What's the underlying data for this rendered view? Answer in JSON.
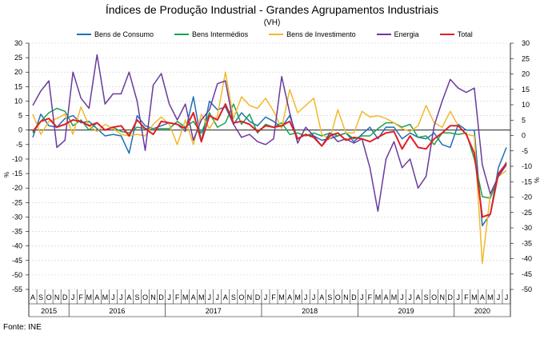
{
  "chart_data": {
    "type": "line",
    "title": "Índices de Produção Industrial - Grandes Agrupamentos Industriais",
    "subtitle": "(VH)",
    "ylabel_left": "%",
    "ylabel_right": "%",
    "ylim": [
      -55,
      30
    ],
    "yticks": [
      30,
      25,
      20,
      15,
      10,
      5,
      0,
      -5,
      -10,
      -15,
      -20,
      -25,
      -30,
      -35,
      -40,
      -45,
      -50,
      -55
    ],
    "y2lim": [
      -50,
      30
    ],
    "y2ticks": [
      30,
      25,
      20,
      15,
      10,
      5,
      0,
      -5,
      -10,
      -15,
      -20,
      -25,
      -30,
      -35,
      -40,
      -45,
      -50
    ],
    "grid": true,
    "legend_position": "top",
    "months": [
      "A",
      "S",
      "O",
      "N",
      "D",
      "J",
      "F",
      "M",
      "A",
      "M",
      "J",
      "J",
      "A",
      "S",
      "O",
      "N",
      "D",
      "J",
      "F",
      "M",
      "A",
      "M",
      "J",
      "J",
      "A",
      "S",
      "O",
      "N",
      "D",
      "J",
      "F",
      "M",
      "A",
      "M",
      "J",
      "J",
      "A",
      "S",
      "O",
      "N",
      "D",
      "J",
      "F",
      "M",
      "A",
      "M",
      "J",
      "J",
      "A",
      "S",
      "O",
      "N",
      "D",
      "J",
      "F",
      "M",
      "A",
      "M",
      "J",
      "J"
    ],
    "years": [
      {
        "label": "2015",
        "start": 0,
        "end": 4
      },
      {
        "label": "2016",
        "start": 5,
        "end": 16
      },
      {
        "label": "2017",
        "start": 17,
        "end": 28
      },
      {
        "label": "2018",
        "start": 29,
        "end": 40
      },
      {
        "label": "2019",
        "start": 41,
        "end": 52
      },
      {
        "label": "2020",
        "start": 53,
        "end": 59
      }
    ],
    "series": [
      {
        "name": "Bens de Consumo",
        "color": "#1f6fb6",
        "values": [
          -2.5,
          5.5,
          1.5,
          1.0,
          4.0,
          5.0,
          2.5,
          3.0,
          0.5,
          -2.0,
          -1.5,
          -2.0,
          -8.0,
          5.0,
          1.5,
          0.5,
          1.5,
          2.5,
          2.0,
          -0.5,
          11.5,
          -4.0,
          10.0,
          7.0,
          8.0,
          2.0,
          6.0,
          3.0,
          1.5,
          4.5,
          3.0,
          1.0,
          5.0,
          -3.0,
          -1.5,
          -2.0,
          -3.5,
          -3.0,
          -2.0,
          -1.0,
          -4.0,
          -1.5,
          1.0,
          -3.0,
          1.0,
          1.0,
          -3.0,
          -1.0,
          -2.5,
          -3.0,
          -1.0,
          -5.0,
          -6.0,
          2.0,
          0.0,
          0.0,
          -33.0,
          -29.0,
          -13.0,
          -6.0
        ]
      },
      {
        "name": "Bens Intermédios",
        "color": "#1aa24c",
        "values": [
          -1.0,
          3.0,
          6.0,
          7.5,
          6.5,
          1.5,
          3.5,
          0.0,
          2.5,
          0.0,
          1.0,
          -0.5,
          -1.0,
          1.0,
          0.5,
          0.5,
          0.5,
          0.5,
          3.0,
          1.0,
          3.0,
          -1.0,
          6.0,
          1.0,
          2.5,
          9.0,
          2.0,
          5.5,
          -1.0,
          2.0,
          1.0,
          2.5,
          -1.5,
          -1.0,
          -2.0,
          -1.0,
          -2.0,
          -1.0,
          -2.0,
          -1.0,
          -3.0,
          -2.0,
          -2.0,
          0.5,
          2.5,
          2.5,
          1.0,
          2.0,
          -2.5,
          -2.0,
          -5.0,
          -1.0,
          -1.0,
          -1.5,
          -1.0,
          -10.0,
          -23.0,
          -23.5,
          -16.0,
          -11.0
        ]
      },
      {
        "name": "Bens de Investimento",
        "color": "#f2b82c",
        "values": [
          5.5,
          -1.5,
          3.0,
          4.0,
          5.5,
          -1.5,
          8.0,
          1.5,
          -0.5,
          2.0,
          0.5,
          -1.5,
          -2.0,
          -1.5,
          -2.0,
          2.0,
          4.5,
          2.0,
          -5.0,
          3.5,
          -5.0,
          5.5,
          0.5,
          5.0,
          20.0,
          4.0,
          11.5,
          8.5,
          7.5,
          11.0,
          6.5,
          0.5,
          14.0,
          6.0,
          8.5,
          11.0,
          -1.5,
          -3.0,
          7.0,
          -1.0,
          -1.0,
          6.5,
          4.5,
          5.0,
          4.0,
          2.5,
          0.5,
          -0.5,
          1.5,
          8.5,
          2.5,
          1.0,
          6.5,
          1.5,
          -1.5,
          -2.0,
          -46.0,
          -22.0,
          -16.0,
          -14.0
        ]
      },
      {
        "name": "Energia",
        "color": "#6a3a9c",
        "values": [
          8.5,
          13.5,
          17.0,
          -6.0,
          -3.5,
          20.0,
          11.0,
          7.5,
          26.0,
          9.0,
          12.5,
          12.5,
          20.0,
          10.0,
          -7.0,
          15.5,
          19.5,
          9.0,
          3.5,
          9.0,
          -3.5,
          3.5,
          7.0,
          16.0,
          17.0,
          2.0,
          -2.5,
          -1.5,
          -4.0,
          -5.0,
          -3.0,
          18.5,
          6.0,
          -4.5,
          1.0,
          -2.0,
          -5.5,
          -1.0,
          -4.0,
          -3.0,
          -4.5,
          -3.0,
          -13.0,
          -28.0,
          -10.0,
          -4.0,
          -13.0,
          -10.0,
          -20.0,
          -16.0,
          1.5,
          10.0,
          17.5,
          14.5,
          13.0,
          14.5,
          -12.0,
          -22.0,
          -16.0,
          -12.0
        ]
      },
      {
        "name": "Total",
        "color": "#e01f26",
        "values": [
          -0.5,
          3.0,
          4.0,
          1.0,
          2.0,
          3.5,
          3.0,
          1.5,
          2.5,
          0.0,
          1.0,
          1.5,
          -2.0,
          3.5,
          0.5,
          -1.5,
          3.0,
          2.5,
          2.0,
          0.5,
          6.0,
          -4.0,
          5.0,
          3.5,
          9.0,
          2.5,
          3.0,
          2.0,
          -0.5,
          1.5,
          1.0,
          1.5,
          3.0,
          -3.0,
          -1.5,
          -2.5,
          -5.5,
          -2.0,
          -1.0,
          -3.5,
          -2.5,
          -3.0,
          -4.0,
          -2.5,
          -1.0,
          -0.5,
          -6.5,
          -2.0,
          -6.0,
          -6.5,
          -3.0,
          -1.0,
          1.5,
          1.5,
          -1.5,
          -8.0,
          -30.0,
          -29.0,
          -15.0,
          -11.5
        ]
      }
    ],
    "source": "Fonte: INE"
  }
}
